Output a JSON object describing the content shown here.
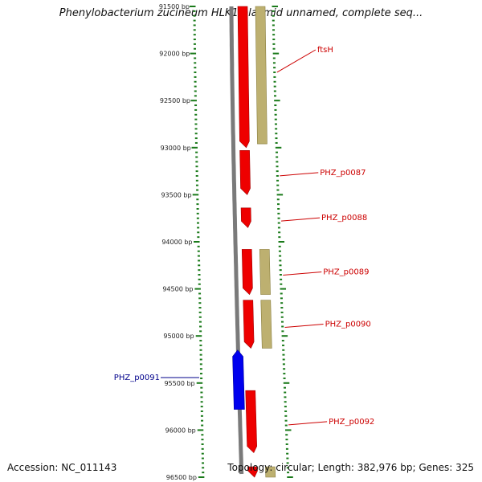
{
  "title": "Phenylobacterium zucineum HLK1 plasmid unnamed, complete seq...",
  "footer": {
    "accession": "Accession: NC_011143",
    "summary": "Topology: circular; Length: 382,976 bp; Genes: 325"
  },
  "axis": {
    "range_bp": [
      91500,
      96500
    ],
    "ticks": [
      {
        "label": "91500 bp",
        "bp": 91500
      },
      {
        "label": "92000 bp",
        "bp": 92000
      },
      {
        "label": "92500 bp",
        "bp": 92500
      },
      {
        "label": "93000 bp",
        "bp": 93000
      },
      {
        "label": "93500 bp",
        "bp": 93500
      },
      {
        "label": "94000 bp",
        "bp": 94000
      },
      {
        "label": "94500 bp",
        "bp": 94500
      },
      {
        "label": "95000 bp",
        "bp": 95000
      },
      {
        "label": "95500 bp",
        "bp": 95500
      },
      {
        "label": "96000 bp",
        "bp": 96000
      },
      {
        "label": "96500 bp",
        "bp": 96500
      }
    ]
  },
  "colors": {
    "forward_gene": "#ee0000",
    "reverse_gene": "#0000ee",
    "feature_band": "#bdb070",
    "backbone": "#7a7a7a",
    "tick_green": "#1a7a1a",
    "label_red": "#cc0000",
    "label_blue": "#00008b"
  },
  "genes": [
    {
      "name": "ftsH",
      "start": 91500,
      "end": 93000,
      "strand": "+",
      "labeled": true
    },
    {
      "name": "PHZ_p0087",
      "start": 93030,
      "end": 93500,
      "strand": "+",
      "labeled": true
    },
    {
      "name": "PHZ_p0088",
      "start": 93640,
      "end": 93850,
      "strand": "+",
      "labeled": true
    },
    {
      "name": "PHZ_p0089",
      "start": 94080,
      "end": 94560,
      "strand": "+",
      "labeled": true
    },
    {
      "name": "PHZ_p0090",
      "start": 94620,
      "end": 95130,
      "strand": "+",
      "labeled": true
    },
    {
      "name": "PHZ_p0091",
      "start": 95150,
      "end": 95780,
      "strand": "-",
      "labeled": true
    },
    {
      "name": "PHZ_p0092",
      "start": 95580,
      "end": 96240,
      "strand": "+",
      "labeled": true
    },
    {
      "name": "",
      "start": 96390,
      "end": 96500,
      "strand": "+",
      "labeled": false
    }
  ],
  "features": [
    {
      "start": 91500,
      "end": 92960
    },
    {
      "start": 94080,
      "end": 94560
    },
    {
      "start": 94620,
      "end": 95130
    },
    {
      "start": 96390,
      "end": 96500
    }
  ]
}
